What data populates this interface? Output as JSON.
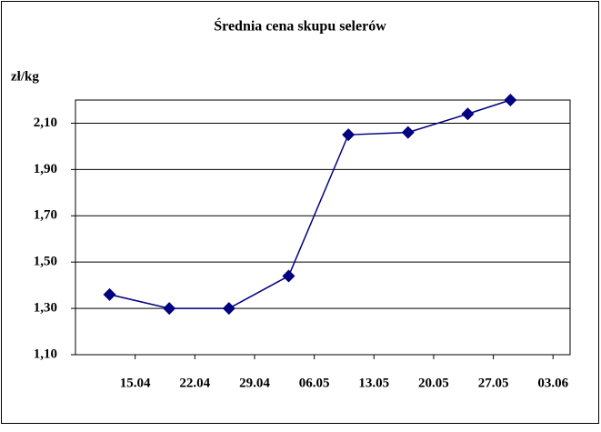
{
  "chart_data": {
    "type": "line",
    "title": "Średnia cena skupu selerów",
    "y_label": "zł/kg",
    "x": [
      "12.04",
      "19.04",
      "26.04",
      "03.05",
      "10.05",
      "17.05",
      "24.05",
      "29.05"
    ],
    "xlim": [
      "08.04",
      "05.06"
    ],
    "xticks": [
      "15.04",
      "22.04",
      "29.04",
      "06.05",
      "13.05",
      "20.05",
      "27.05",
      "03.06"
    ],
    "series": [
      {
        "color": "#000080",
        "values": [
          1.36,
          1.3,
          1.3,
          1.44,
          2.05,
          2.06,
          2.14,
          2.2
        ]
      }
    ],
    "ylim": [
      1.1,
      2.2
    ],
    "yticks": [
      {
        "value": 1.1,
        "label": "1,10"
      },
      {
        "value": 1.3,
        "label": "1,30"
      },
      {
        "value": 1.5,
        "label": "1,50"
      },
      {
        "value": 1.7,
        "label": "1,70"
      },
      {
        "value": 1.9,
        "label": "1,90"
      },
      {
        "value": 2.1,
        "label": "2,10"
      }
    ],
    "grid": true
  }
}
